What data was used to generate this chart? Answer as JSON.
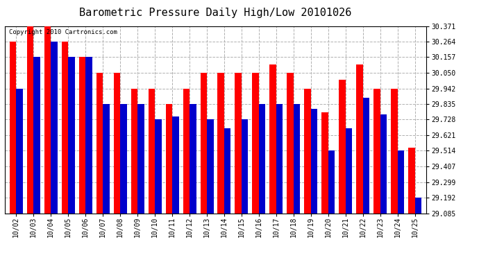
{
  "title": "Barometric Pressure Daily High/Low 20101026",
  "copyright": "Copyright 2010 Cartronics.com",
  "dates": [
    "10/02",
    "10/03",
    "10/04",
    "10/05",
    "10/06",
    "10/07",
    "10/08",
    "10/09",
    "10/10",
    "10/11",
    "10/12",
    "10/13",
    "10/14",
    "10/15",
    "10/16",
    "10/17",
    "10/18",
    "10/19",
    "10/20",
    "10/21",
    "10/22",
    "10/23",
    "10/24",
    "10/25"
  ],
  "highs": [
    30.264,
    30.371,
    30.371,
    30.264,
    30.157,
    30.05,
    30.05,
    29.942,
    29.942,
    29.835,
    29.942,
    30.05,
    30.05,
    30.05,
    30.05,
    30.107,
    30.05,
    29.942,
    29.777,
    30.0,
    30.107,
    29.942,
    29.942,
    29.535
  ],
  "lows": [
    29.942,
    30.157,
    30.264,
    30.157,
    30.157,
    29.835,
    29.835,
    29.835,
    29.728,
    29.75,
    29.835,
    29.728,
    29.67,
    29.728,
    29.835,
    29.835,
    29.835,
    29.8,
    29.514,
    29.67,
    29.878,
    29.764,
    29.514,
    29.192
  ],
  "ymin": 29.085,
  "ymax": 30.371,
  "yticks": [
    29.085,
    29.192,
    29.299,
    29.407,
    29.514,
    29.621,
    29.728,
    29.835,
    29.942,
    30.05,
    30.157,
    30.264,
    30.371
  ],
  "bar_width": 0.38,
  "high_color": "#ff0000",
  "low_color": "#0000cc",
  "bg_color": "#ffffff",
  "grid_color": "#b0b0b0",
  "title_fontsize": 11,
  "tick_fontsize": 7,
  "copyright_fontsize": 6.5
}
